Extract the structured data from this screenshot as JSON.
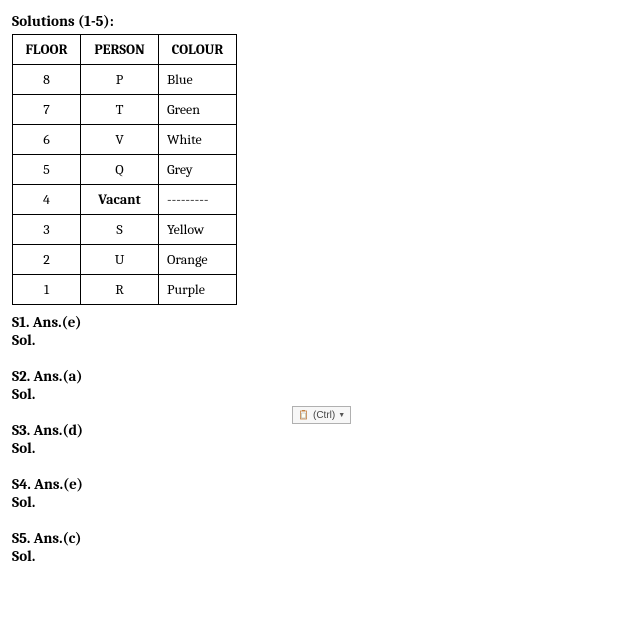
{
  "heading": "Solutions (1-5):",
  "table": {
    "columns": [
      "FLOOR",
      "PERSON",
      "COLOUR"
    ],
    "rows": [
      {
        "floor": "8",
        "person": "P",
        "colour": "Blue",
        "person_bold": false
      },
      {
        "floor": "7",
        "person": "T",
        "colour": "Green",
        "person_bold": false
      },
      {
        "floor": "6",
        "person": "V",
        "colour": "White",
        "person_bold": false
      },
      {
        "floor": "5",
        "person": "Q",
        "colour": "Grey",
        "person_bold": false
      },
      {
        "floor": "4",
        "person": "Vacant",
        "colour": "---------",
        "person_bold": true
      },
      {
        "floor": "3",
        "person": "S",
        "colour": "Yellow",
        "person_bold": false
      },
      {
        "floor": "2",
        "person": "U",
        "colour": "Orange",
        "person_bold": false
      },
      {
        "floor": "1",
        "person": "R",
        "colour": "Purple",
        "person_bold": false
      }
    ]
  },
  "answers": [
    {
      "line": "S1. Ans.(e)",
      "sol": "Sol."
    },
    {
      "line": "S2. Ans.(a)",
      "sol": "Sol."
    },
    {
      "line": "S3. Ans.(d)",
      "sol": "Sol."
    },
    {
      "line": "S4. Ans.(e)",
      "sol": "Sol."
    },
    {
      "line": "S5. Ans.(c)",
      "sol": "Sol."
    }
  ],
  "ctrl_widget": {
    "label": "(Ctrl)"
  },
  "colors": {
    "text": "#000000",
    "background": "#ffffff",
    "border": "#000000",
    "widget_border": "#b0b0b0",
    "widget_bg": "#f7f7f7"
  }
}
